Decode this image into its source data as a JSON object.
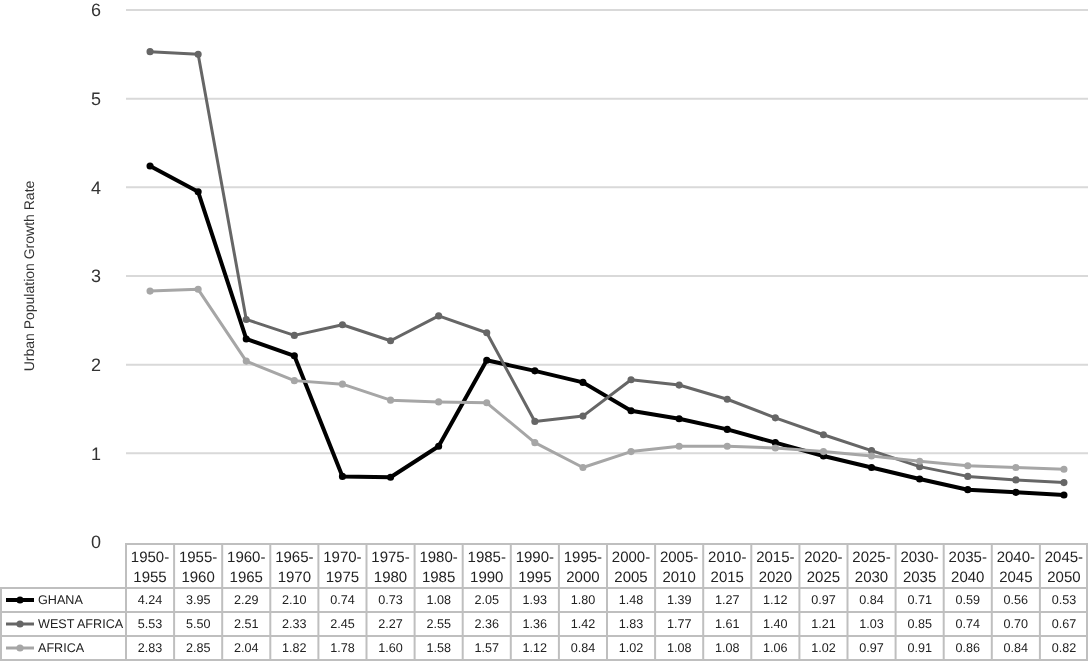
{
  "chart_data": {
    "type": "line",
    "ylabel": "Urban Population Growth Rate",
    "categories": [
      "1950-1955",
      "1955-1960",
      "1960-1965",
      "1965-1970",
      "1970-1975",
      "1975-1980",
      "1980-1985",
      "1985-1990",
      "1990-1995",
      "1995-2000",
      "2000-2005",
      "2005-2010",
      "2010-2015",
      "2015-2020",
      "2020-2025",
      "2025-2030",
      "2030-2035",
      "2035-2040",
      "2040-2045",
      "2045-2050"
    ],
    "series": [
      {
        "name": "GHANA",
        "color": "#000000",
        "values": [
          4.24,
          3.95,
          2.29,
          2.1,
          0.74,
          0.73,
          1.08,
          2.05,
          1.93,
          1.8,
          1.48,
          1.39,
          1.27,
          1.12,
          0.97,
          0.84,
          0.71,
          0.59,
          0.56,
          0.53
        ],
        "value_labels": [
          "4.24",
          "3.95",
          "2.29",
          "2.10",
          "0.74",
          "0.73",
          "1.08",
          "2.05",
          "1.93",
          "1.80",
          "1.48",
          "1.39",
          "1.27",
          "1.12",
          "0.97",
          "0.84",
          "0.71",
          "0.59",
          "0.56",
          "0.53"
        ]
      },
      {
        "name": "WEST AFRICA",
        "color": "#666666",
        "values": [
          5.53,
          5.5,
          2.51,
          2.33,
          2.45,
          2.27,
          2.55,
          2.36,
          1.36,
          1.42,
          1.83,
          1.77,
          1.61,
          1.4,
          1.21,
          1.03,
          0.85,
          0.74,
          0.7,
          0.67
        ],
        "value_labels": [
          "5.53",
          "5.50",
          "2.51",
          "2.33",
          "2.45",
          "2.27",
          "2.55",
          "2.36",
          "1.36",
          "1.42",
          "1.83",
          "1.77",
          "1.61",
          "1.40",
          "1.21",
          "1.03",
          "0.85",
          "0.74",
          "0.70",
          "0.67"
        ]
      },
      {
        "name": "AFRICA",
        "color": "#a6a6a6",
        "values": [
          2.83,
          2.85,
          2.04,
          1.82,
          1.78,
          1.6,
          1.58,
          1.57,
          1.12,
          0.84,
          1.02,
          1.08,
          1.08,
          1.06,
          1.02,
          0.97,
          0.91,
          0.86,
          0.84,
          0.82
        ],
        "value_labels": [
          "2.83",
          "2.85",
          "2.04",
          "1.82",
          "1.78",
          "1.60",
          "1.58",
          "1.57",
          "1.12",
          "0.84",
          "1.02",
          "1.08",
          "1.08",
          "1.06",
          "1.02",
          "0.97",
          "0.91",
          "0.86",
          "0.84",
          "0.82"
        ]
      }
    ],
    "ylim": [
      0,
      6
    ],
    "yticks": [
      0,
      1,
      2,
      3,
      4,
      5,
      6
    ],
    "grid": "y",
    "legend": "bottom",
    "marker": "circle",
    "line_style": "solid"
  }
}
